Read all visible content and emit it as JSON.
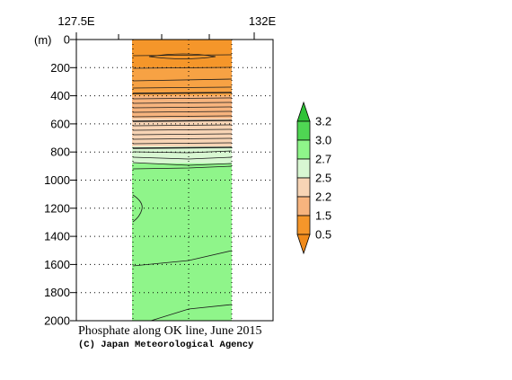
{
  "chart_data": {
    "type": "heatmap",
    "title": "Phosphate along OK line, June 2015",
    "credit": "(C) Japan Meteorological Agency",
    "x_ticks": [
      "127.5E",
      "132E"
    ],
    "y_unit_label": "(m)",
    "y_ticks": [
      0,
      200,
      400,
      600,
      800,
      1000,
      1200,
      1400,
      1600,
      1800,
      2000
    ],
    "ylim": [
      0,
      2000
    ],
    "y_reversed": true,
    "grid": "dotted",
    "colorbar": {
      "levels": [
        "3.2",
        "3.0",
        "2.7",
        "2.5",
        "2.2",
        "1.5",
        "0.5"
      ],
      "colors": [
        "#2fc237",
        "#4fd653",
        "#8ff58a",
        "#d8f7d2",
        "#f7d4b5",
        "#f7b47e",
        "#f5962a",
        "#f08a1a"
      ]
    },
    "depth_bands": [
      {
        "from": 0,
        "to": 200,
        "color": "#f5962a"
      },
      {
        "from": 200,
        "to": 400,
        "color": "#f7a244"
      },
      {
        "from": 400,
        "to": 560,
        "color": "#f7b47e"
      },
      {
        "from": 560,
        "to": 760,
        "color": "#f7d4b5"
      },
      {
        "from": 760,
        "to": 880,
        "color": "#d8f7d2"
      },
      {
        "from": 880,
        "to": 2000,
        "color": "#8ff58a"
      }
    ]
  }
}
